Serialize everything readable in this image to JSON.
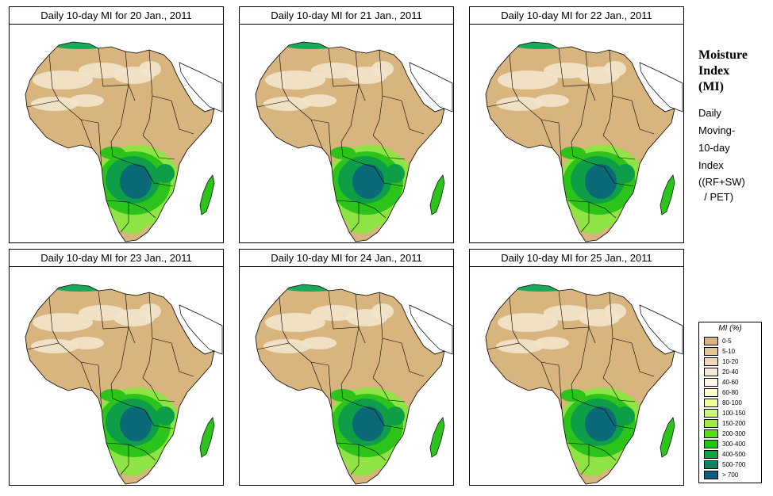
{
  "panels": [
    {
      "title": "Daily 10-day MI for  20 Jan., 2011"
    },
    {
      "title": "Daily 10-day MI for  21 Jan., 2011"
    },
    {
      "title": "Daily 10-day MI for  22 Jan., 2011"
    },
    {
      "title": "Daily 10-day MI for  23 Jan., 2011"
    },
    {
      "title": "Daily 10-day MI for  24 Jan., 2011"
    },
    {
      "title": "Daily 10-day MI for  25 Jan., 2011"
    }
  ],
  "side_panel": {
    "title_lines": [
      "Moisture",
      "Index",
      "(MI)"
    ],
    "desc_lines": [
      "Daily",
      "Moving-",
      "10-day",
      "Index"
    ],
    "formula_lines": [
      "((RF+SW)",
      "  / PET)"
    ]
  },
  "legend": {
    "title": "MI (%)",
    "items": [
      {
        "label": "0-5",
        "color": "#d8b47e"
      },
      {
        "label": "5-10",
        "color": "#e3c596"
      },
      {
        "label": "10-20",
        "color": "#eed8b8"
      },
      {
        "label": "20-40",
        "color": "#f6e9d1"
      },
      {
        "label": "40-60",
        "color": "#fdf7e2"
      },
      {
        "label": "60-80",
        "color": "#fbfcc8"
      },
      {
        "label": "80-100",
        "color": "#eefc9e"
      },
      {
        "label": "100-150",
        "color": "#cdf57a"
      },
      {
        "label": "150-200",
        "color": "#9eec42"
      },
      {
        "label": "200-300",
        "color": "#57dc1c"
      },
      {
        "label": "300-400",
        "color": "#22c412"
      },
      {
        "label": "400-500",
        "color": "#0ea33c"
      },
      {
        "label": "500-700",
        "color": "#0b8461"
      },
      {
        "label": "> 700",
        "color": "#0b5f7e"
      }
    ]
  },
  "colors": {
    "ocean": "#ffffff",
    "land_dry": "#d8b47e",
    "desert_light": "#f3e6cc",
    "green_light": "#8fe445",
    "green_mid": "#2cc41a",
    "green_dark": "#0e9e48",
    "wet_core": "#0c6a78",
    "north_coast": "#1aa85a",
    "border": "#000000"
  }
}
